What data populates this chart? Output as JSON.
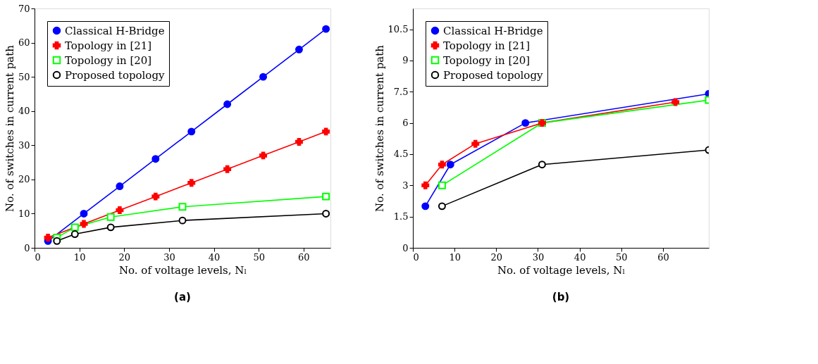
{
  "chart_data": [
    {
      "type": "line",
      "title": "(a)",
      "xlabel": "No. of voltage levels, Nₗ",
      "ylabel": "No. of switches in current path",
      "xlim": [
        0,
        66
      ],
      "ylim": [
        0,
        70
      ],
      "xticks": [
        0,
        10,
        20,
        30,
        40,
        50,
        60
      ],
      "yticks": [
        0,
        10,
        20,
        30,
        40,
        50,
        60,
        70
      ],
      "grid": false,
      "legend": "top left",
      "line_style": "solid",
      "series": [
        {
          "name": "Classical H-Bridge",
          "color": "#0000ff",
          "marker": "circle",
          "x": [
            3,
            11,
            19,
            27,
            35,
            43,
            51,
            59,
            65
          ],
          "values": [
            2,
            10,
            18,
            26,
            34,
            42,
            50,
            58,
            64
          ]
        },
        {
          "name": "Topology in [21]",
          "color": "#ff0000",
          "marker": "cross",
          "x": [
            3,
            11,
            19,
            27,
            35,
            43,
            51,
            59,
            65
          ],
          "values": [
            3,
            7,
            11,
            15,
            19,
            23,
            27,
            31,
            34
          ]
        },
        {
          "name": "Topology in [20]",
          "color": "#00ff00",
          "marker": "square",
          "x": [
            5,
            9,
            17,
            33,
            65
          ],
          "values": [
            3,
            6,
            9,
            12,
            15
          ]
        },
        {
          "name": "Proposed topology",
          "color": "#000000",
          "marker": "circle",
          "x": [
            5,
            9,
            17,
            33,
            65
          ],
          "values": [
            2,
            4,
            6,
            8,
            10
          ]
        }
      ]
    },
    {
      "type": "line",
      "title": "(b)",
      "xlabel": "No. of voltage levels, Nₗ",
      "ylabel": "No. of switches in current path",
      "xlim": [
        0,
        71
      ],
      "ylim": [
        0,
        11.5
      ],
      "xticks": [
        0,
        10,
        20,
        30,
        40,
        50,
        60
      ],
      "yticks": [
        0,
        1.5,
        3,
        4.5,
        6,
        7.5,
        9,
        10.5
      ],
      "grid": false,
      "legend": "top left",
      "line_style": "solid",
      "series": [
        {
          "name": "Classical H-Bridge",
          "color": "#0000ff",
          "marker": "circle",
          "x": [
            3,
            9,
            27,
            71
          ],
          "values": [
            2,
            4,
            6,
            7.4
          ]
        },
        {
          "name": "Topology in [21]",
          "color": "#ff0000",
          "marker": "cross",
          "x": [
            3,
            7,
            15,
            31,
            63
          ],
          "values": [
            3,
            4,
            5,
            6,
            7
          ]
        },
        {
          "name": "Topology in [20]",
          "color": "#00ff00",
          "marker": "square",
          "x": [
            7,
            31,
            71
          ],
          "values": [
            3,
            6,
            7.1
          ]
        },
        {
          "name": "Proposed topology",
          "color": "#000000",
          "marker": "circle",
          "x": [
            7,
            31,
            71
          ],
          "values": [
            2,
            4,
            4.7
          ]
        }
      ]
    }
  ]
}
